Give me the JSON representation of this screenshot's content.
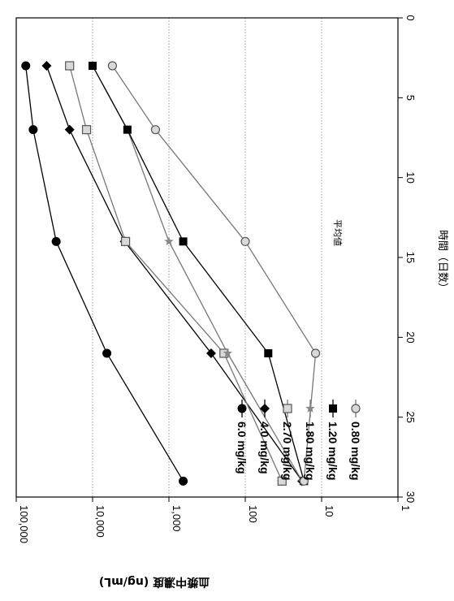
{
  "chart_data": {
    "type": "line",
    "orientation": "rotated-90-clockwise",
    "xlabel": "時間（日数）",
    "ylabel": "血漿中濃度 (ng/mL)",
    "note": "平均値",
    "x_range": [
      0,
      30
    ],
    "x_ticks": [
      "0",
      "5",
      "10",
      "15",
      "20",
      "25",
      "30"
    ],
    "y_scale": "log",
    "y_range": [
      1,
      100000
    ],
    "y_ticks": [
      "1",
      "10",
      "100",
      "1,000",
      "10,000",
      "100,000"
    ],
    "grid": "horizontal dotted at each decade",
    "legend_position": "bottom-right",
    "series": [
      {
        "name": "6.0 mg/kg",
        "marker": "circle-filled",
        "color": "#000000",
        "x": [
          3,
          7,
          14,
          21,
          29
        ],
        "y": [
          75000,
          60000,
          30000,
          6500,
          650
        ]
      },
      {
        "name": "4.0 mg/kg",
        "marker": "diamond-filled",
        "color": "#000000",
        "x": [
          3,
          7,
          14,
          21,
          29
        ],
        "y": [
          40000,
          20000,
          3800,
          280,
          18
        ]
      },
      {
        "name": "2.70 mg/kg",
        "marker": "square-open",
        "color": "#999999",
        "x": [
          3,
          7,
          14,
          21,
          29
        ],
        "y": [
          20000,
          12000,
          3700,
          190,
          33
        ]
      },
      {
        "name": "1.80 mg/kg",
        "marker": "star",
        "color": "#999999",
        "x": [
          3,
          7,
          14,
          21,
          29
        ],
        "y": [
          10000,
          3500,
          1000,
          170,
          18
        ]
      },
      {
        "name": "1.20 mg/kg",
        "marker": "square-filled",
        "color": "#000000",
        "x": [
          3,
          7,
          14,
          21,
          29
        ],
        "y": [
          10000,
          3500,
          650,
          50,
          17
        ]
      },
      {
        "name": "0.80 mg/kg",
        "marker": "circle-open",
        "color": "#999999",
        "x": [
          3,
          7,
          14,
          21,
          29
        ],
        "y": [
          5500,
          1500,
          100,
          12,
          17
        ]
      }
    ]
  }
}
